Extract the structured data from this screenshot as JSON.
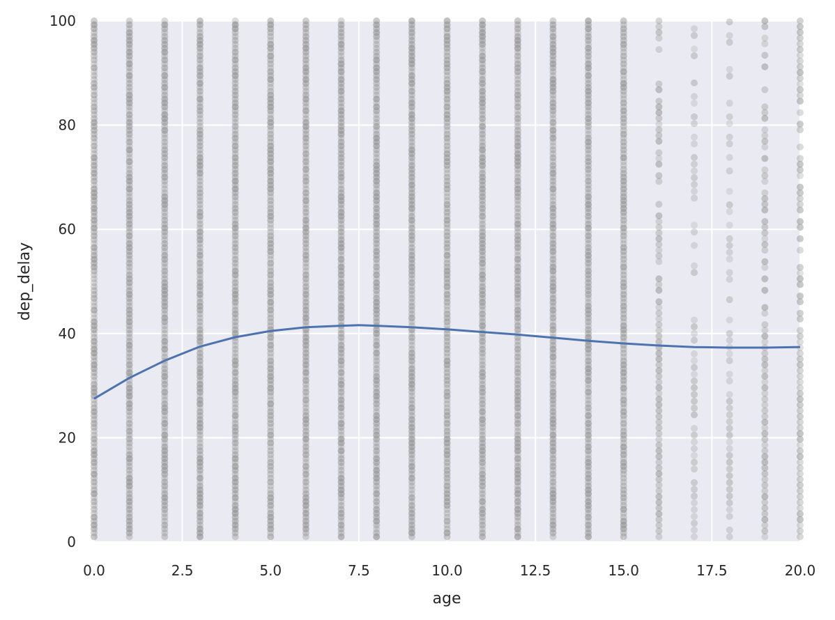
{
  "chart_data": {
    "type": "scatter",
    "title": "",
    "xlabel": "age",
    "ylabel": "dep_delay",
    "xlim": [
      0,
      20
    ],
    "ylim": [
      0,
      100
    ],
    "xticks": [
      "0.0",
      "2.5",
      "5.0",
      "7.5",
      "10.0",
      "12.5",
      "15.0",
      "17.5",
      "20.0"
    ],
    "yticks": [
      "0",
      "20",
      "40",
      "60",
      "80",
      "100"
    ],
    "grid": true,
    "background": "#EAEAF2",
    "point_color": "#939393",
    "line_color": "#4C72B0",
    "scatter_columns": [
      {
        "x": 0,
        "density": "dense"
      },
      {
        "x": 1,
        "density": "dense"
      },
      {
        "x": 2,
        "density": "dense"
      },
      {
        "x": 3,
        "density": "dense"
      },
      {
        "x": 4,
        "density": "dense"
      },
      {
        "x": 5,
        "density": "dense"
      },
      {
        "x": 6,
        "density": "dense"
      },
      {
        "x": 7,
        "density": "dense"
      },
      {
        "x": 8,
        "density": "dense"
      },
      {
        "x": 9,
        "density": "dense"
      },
      {
        "x": 10,
        "density": "dense"
      },
      {
        "x": 11,
        "density": "dense"
      },
      {
        "x": 12,
        "density": "dense"
      },
      {
        "x": 13,
        "density": "dense"
      },
      {
        "x": 14,
        "density": "dense"
      },
      {
        "x": 15,
        "density": "dense"
      },
      {
        "x": 16,
        "density": "medium"
      },
      {
        "x": 17,
        "density": "sparse"
      },
      {
        "x": 18,
        "density": "sparse"
      },
      {
        "x": 19,
        "density": "medium"
      },
      {
        "x": 20,
        "density": "medium"
      }
    ],
    "series": [
      {
        "kind": "smooth_line",
        "x": [
          0,
          1,
          2,
          3,
          4,
          5,
          6,
          7,
          7.5,
          8,
          9,
          10,
          11,
          12,
          13,
          14,
          15,
          16,
          17,
          18,
          19,
          20
        ],
        "values": [
          27.5,
          31.5,
          34.8,
          37.5,
          39.3,
          40.5,
          41.2,
          41.5,
          41.6,
          41.5,
          41.2,
          40.8,
          40.3,
          39.8,
          39.2,
          38.6,
          38.1,
          37.7,
          37.4,
          37.3,
          37.3,
          37.4
        ]
      }
    ]
  }
}
